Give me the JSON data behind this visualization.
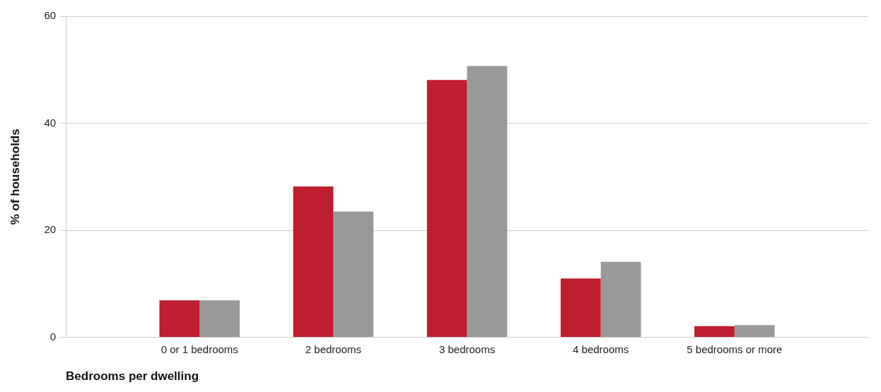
{
  "chart_data": {
    "type": "bar",
    "xlabel": "Bedrooms per dwelling",
    "ylabel": "% of households",
    "categories": [
      null,
      "0 or 1 bedrooms",
      "2 bedrooms",
      "3 bedrooms",
      "4 bedrooms",
      "5 bedrooms or more",
      null
    ],
    "series": [
      {
        "color": "#be1e2d",
        "values": [
          null,
          6.9,
          28.2,
          48.1,
          11.0,
          2.1,
          null
        ]
      },
      {
        "color": "#999999",
        "values": [
          null,
          6.9,
          23.5,
          50.7,
          14.1,
          2.3,
          null
        ]
      }
    ],
    "ylim": [
      0,
      60
    ],
    "yticks": [
      0,
      20,
      40,
      60
    ],
    "grid": "y",
    "legend": false
  }
}
